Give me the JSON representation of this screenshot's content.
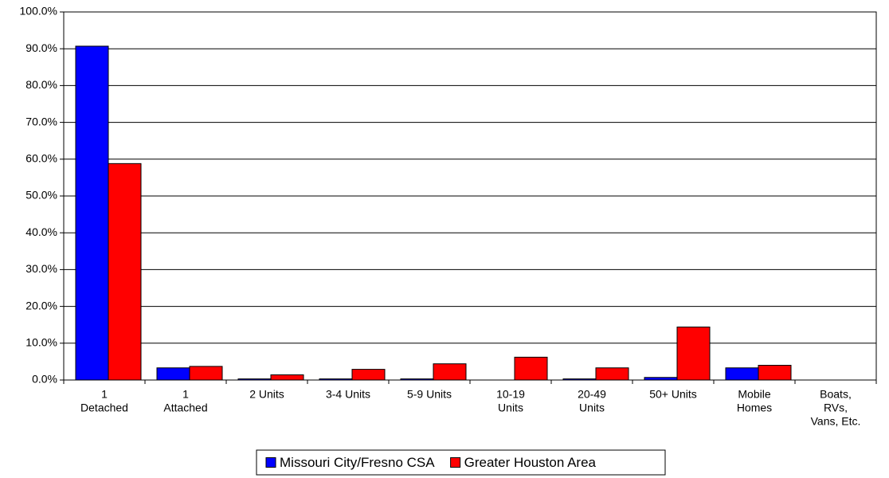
{
  "chart_data": {
    "type": "bar",
    "categories": [
      [
        "1",
        "Detached"
      ],
      [
        "1",
        "Attached"
      ],
      [
        "2 Units"
      ],
      [
        "3-4 Units"
      ],
      [
        "5-9 Units"
      ],
      [
        "10-19",
        "Units"
      ],
      [
        "20-49",
        "Units"
      ],
      [
        "50+ Units"
      ],
      [
        "Mobile",
        "Homes"
      ],
      [
        "Boats,",
        "RVs,",
        "Vans, Etc."
      ]
    ],
    "series": [
      {
        "name": "Missouri City/Fresno CSA",
        "color": "#0000ff",
        "values": [
          90.7,
          3.3,
          0.3,
          0.3,
          0.3,
          0,
          0.3,
          0.7,
          3.3,
          0
        ]
      },
      {
        "name": "Greater Houston Area",
        "color": "#ff0000",
        "values": [
          58.8,
          3.7,
          1.4,
          2.9,
          4.4,
          6.2,
          3.3,
          14.4,
          4.0,
          0
        ]
      }
    ],
    "ylim": [
      0,
      100
    ],
    "yticks": [
      {
        "value": 0,
        "label": "0.0%"
      },
      {
        "value": 10,
        "label": "10.0%"
      },
      {
        "value": 20,
        "label": "20.0%"
      },
      {
        "value": 30,
        "label": "30.0%"
      },
      {
        "value": 40,
        "label": "40.0%"
      },
      {
        "value": 50,
        "label": "50.0%"
      },
      {
        "value": 60,
        "label": "60.0%"
      },
      {
        "value": 70,
        "label": "70.0%"
      },
      {
        "value": 80,
        "label": "80.0%"
      },
      {
        "value": 90,
        "label": "90.0%"
      },
      {
        "value": 100,
        "label": "100.0%"
      }
    ],
    "grid": true,
    "legend": "bottom"
  }
}
